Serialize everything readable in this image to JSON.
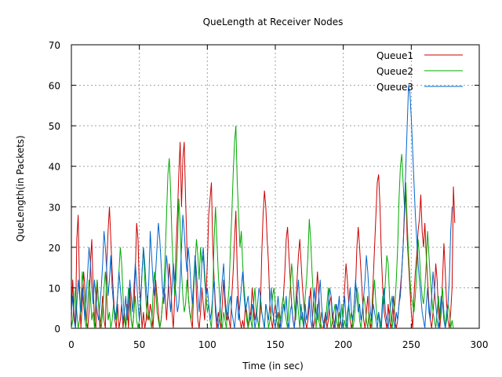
{
  "chart_data": {
    "type": "line",
    "title": "QueLength at Receiver Nodes",
    "xlabel": "Time (in sec)",
    "ylabel": "QueLength(in Packets)",
    "xlim": [
      0,
      300
    ],
    "ylim": [
      0,
      70
    ],
    "xticks": [
      0,
      50,
      100,
      150,
      200,
      250,
      300
    ],
    "yticks": [
      0,
      10,
      20,
      30,
      40,
      50,
      60,
      70
    ],
    "grid": true,
    "legend_position": "top-right",
    "sample_interval": 1,
    "series": [
      {
        "name": "Queue1",
        "color": "#cc0000",
        "values": [
          2,
          12,
          4,
          0,
          22,
          28,
          10,
          0,
          6,
          14,
          10,
          2,
          0,
          4,
          16,
          22,
          10,
          2,
          0,
          12,
          6,
          0,
          3,
          8,
          2,
          0,
          16,
          24,
          30,
          22,
          14,
          8,
          2,
          0,
          6,
          0,
          2,
          6,
          0,
          4,
          0,
          6,
          0,
          10,
          2,
          0,
          4,
          14,
          26,
          22,
          10,
          6,
          0,
          4,
          0,
          2,
          8,
          2,
          6,
          4,
          0,
          6,
          12,
          8,
          4,
          0,
          2,
          6,
          10,
          8,
          2,
          8,
          16,
          12,
          4,
          0,
          8,
          20,
          28,
          38,
          46,
          30,
          42,
          46,
          32,
          20,
          8,
          4,
          2,
          0,
          10,
          18,
          8,
          2,
          0,
          4,
          10,
          6,
          2,
          8,
          16,
          28,
          32,
          36,
          20,
          12,
          4,
          0,
          4,
          2,
          0,
          6,
          12,
          6,
          2,
          4,
          2,
          0,
          8,
          14,
          22,
          29,
          14,
          6,
          2,
          0,
          2,
          0,
          6,
          4,
          0,
          2,
          4,
          10,
          6,
          2,
          4,
          2,
          0,
          4,
          18,
          28,
          34,
          30,
          22,
          16,
          6,
          2,
          0,
          4,
          6,
          2,
          4,
          0,
          2,
          6,
          8,
          14,
          22,
          25,
          18,
          12,
          6,
          2,
          0,
          6,
          12,
          18,
          22,
          16,
          10,
          6,
          2,
          0,
          2,
          6,
          10,
          4,
          0,
          2,
          8,
          14,
          8,
          2,
          0,
          0,
          2,
          4,
          0,
          2,
          6,
          8,
          2,
          0,
          2,
          6,
          4,
          0,
          2,
          0,
          4,
          10,
          16,
          12,
          6,
          2,
          0,
          2,
          6,
          10,
          20,
          25,
          20,
          14,
          8,
          2,
          0,
          4,
          8,
          2,
          0,
          4,
          12,
          20,
          28,
          36,
          38,
          30,
          18,
          10,
          4,
          2,
          0,
          6,
          2,
          0,
          4,
          8,
          2,
          0,
          2,
          6,
          10,
          14,
          20,
          28,
          34,
          22,
          16,
          10,
          4,
          0,
          8,
          14,
          18,
          24,
          27,
          33,
          24,
          20,
          26,
          18,
          12,
          6,
          2,
          0,
          4,
          8,
          16,
          12,
          4,
          0,
          4,
          12,
          21,
          14,
          6,
          2,
          0,
          4,
          10,
          35,
          26
        ]
      },
      {
        "name": "Queue2",
        "color": "#00aa00",
        "values": [
          0,
          2,
          6,
          10,
          4,
          0,
          2,
          6,
          14,
          10,
          2,
          0,
          6,
          12,
          8,
          2,
          4,
          0,
          8,
          12,
          6,
          2,
          0,
          4,
          10,
          14,
          8,
          2,
          4,
          0,
          2,
          6,
          4,
          2,
          8,
          14,
          20,
          16,
          8,
          2,
          0,
          4,
          10,
          6,
          2,
          0,
          4,
          8,
          2,
          0,
          2,
          6,
          14,
          20,
          12,
          6,
          2,
          4,
          2,
          0,
          8,
          14,
          10,
          4,
          2,
          0,
          2,
          6,
          10,
          18,
          28,
          38,
          42,
          34,
          22,
          14,
          8,
          12,
          20,
          32,
          26,
          14,
          8,
          4,
          6,
          12,
          8,
          4,
          2,
          6,
          10,
          16,
          22,
          18,
          12,
          20,
          16,
          18,
          12,
          8,
          4,
          6,
          2,
          0,
          8,
          22,
          30,
          22,
          14,
          8,
          2,
          0,
          4,
          2,
          0,
          6,
          10,
          20,
          28,
          38,
          46,
          50,
          36,
          28,
          20,
          24,
          16,
          10,
          6,
          2,
          0,
          4,
          2,
          0,
          6,
          10,
          4,
          2,
          0,
          8,
          4,
          2,
          0,
          6,
          4,
          0,
          2,
          4,
          8,
          10,
          6,
          2,
          0,
          4,
          2,
          6,
          8,
          4,
          2,
          0,
          6,
          10,
          16,
          12,
          6,
          2,
          8,
          4,
          0,
          6,
          2,
          0,
          8,
          12,
          18,
          27,
          22,
          14,
          8,
          4,
          0,
          6,
          2,
          0,
          4,
          2,
          0,
          2,
          6,
          10,
          4,
          0,
          2,
          4,
          6,
          2,
          0,
          4,
          2,
          6,
          0,
          2,
          0,
          4,
          6,
          2,
          4,
          0,
          2,
          6,
          10,
          8,
          2,
          0,
          4,
          8,
          6,
          2,
          0,
          4,
          2,
          0,
          8,
          12,
          6,
          2,
          4,
          0,
          2,
          8,
          6,
          12,
          18,
          16,
          8,
          2,
          0,
          4,
          6,
          12,
          20,
          32,
          40,
          43,
          36,
          30,
          36,
          26,
          18,
          12,
          8,
          6,
          4,
          8,
          14,
          22,
          18,
          12,
          8,
          6,
          10,
          16,
          24,
          18,
          12,
          8,
          4,
          2,
          0,
          4,
          8,
          2,
          6,
          10,
          4,
          0,
          2,
          6,
          4,
          0,
          2,
          0
        ]
      },
      {
        "name": "Queue3",
        "color": "#0066cc",
        "values": [
          4,
          8,
          2,
          0,
          6,
          12,
          8,
          4,
          10,
          6,
          2,
          8,
          14,
          20,
          16,
          10,
          6,
          12,
          8,
          4,
          2,
          6,
          10,
          16,
          24,
          20,
          14,
          8,
          12,
          18,
          10,
          6,
          2,
          4,
          8,
          14,
          10,
          6,
          2,
          4,
          8,
          2,
          6,
          12,
          8,
          4,
          10,
          16,
          12,
          6,
          2,
          8,
          14,
          20,
          16,
          10,
          6,
          12,
          24,
          18,
          12,
          8,
          14,
          20,
          26,
          22,
          16,
          10,
          6,
          12,
          18,
          14,
          8,
          4,
          10,
          16,
          12,
          8,
          4,
          6,
          12,
          20,
          28,
          24,
          18,
          14,
          20,
          16,
          10,
          6,
          12,
          18,
          14,
          8,
          4,
          10,
          16,
          20,
          14,
          8,
          10,
          6,
          2,
          4,
          8,
          12,
          6,
          2,
          0,
          4,
          8,
          12,
          16,
          8,
          4,
          2,
          6,
          8,
          4,
          2,
          0,
          4,
          8,
          2,
          6,
          10,
          14,
          8,
          4,
          6,
          8,
          4,
          2,
          6,
          4,
          0,
          2,
          6,
          10,
          8,
          4,
          2,
          0,
          6,
          4,
          2,
          6,
          10,
          4,
          2,
          0,
          4,
          8,
          4,
          0,
          2,
          6,
          4,
          8,
          2,
          0,
          4,
          6,
          2,
          0,
          4,
          8,
          12,
          6,
          2,
          4,
          0,
          6,
          2,
          4,
          8,
          2,
          0,
          6,
          10,
          4,
          2,
          8,
          12,
          6,
          2,
          0,
          4,
          2,
          6,
          10,
          8,
          4,
          2,
          0,
          6,
          4,
          8,
          2,
          0,
          4,
          8,
          2,
          0,
          6,
          10,
          4,
          2,
          6,
          12,
          8,
          4,
          6,
          2,
          4,
          8,
          12,
          18,
          14,
          8,
          4,
          2,
          6,
          4,
          2,
          0,
          4,
          2,
          0,
          6,
          10,
          4,
          2,
          0,
          4,
          6,
          8,
          2,
          0,
          4,
          2,
          6,
          8,
          14,
          20,
          30,
          40,
          50,
          60,
          58,
          52,
          44,
          36,
          28,
          22,
          16,
          12,
          8,
          4,
          2,
          0,
          6,
          10,
          4,
          2,
          8,
          14,
          10,
          6,
          2,
          0,
          4,
          8,
          6,
          2,
          0,
          4,
          6,
          12,
          24,
          30
        ]
      }
    ]
  }
}
